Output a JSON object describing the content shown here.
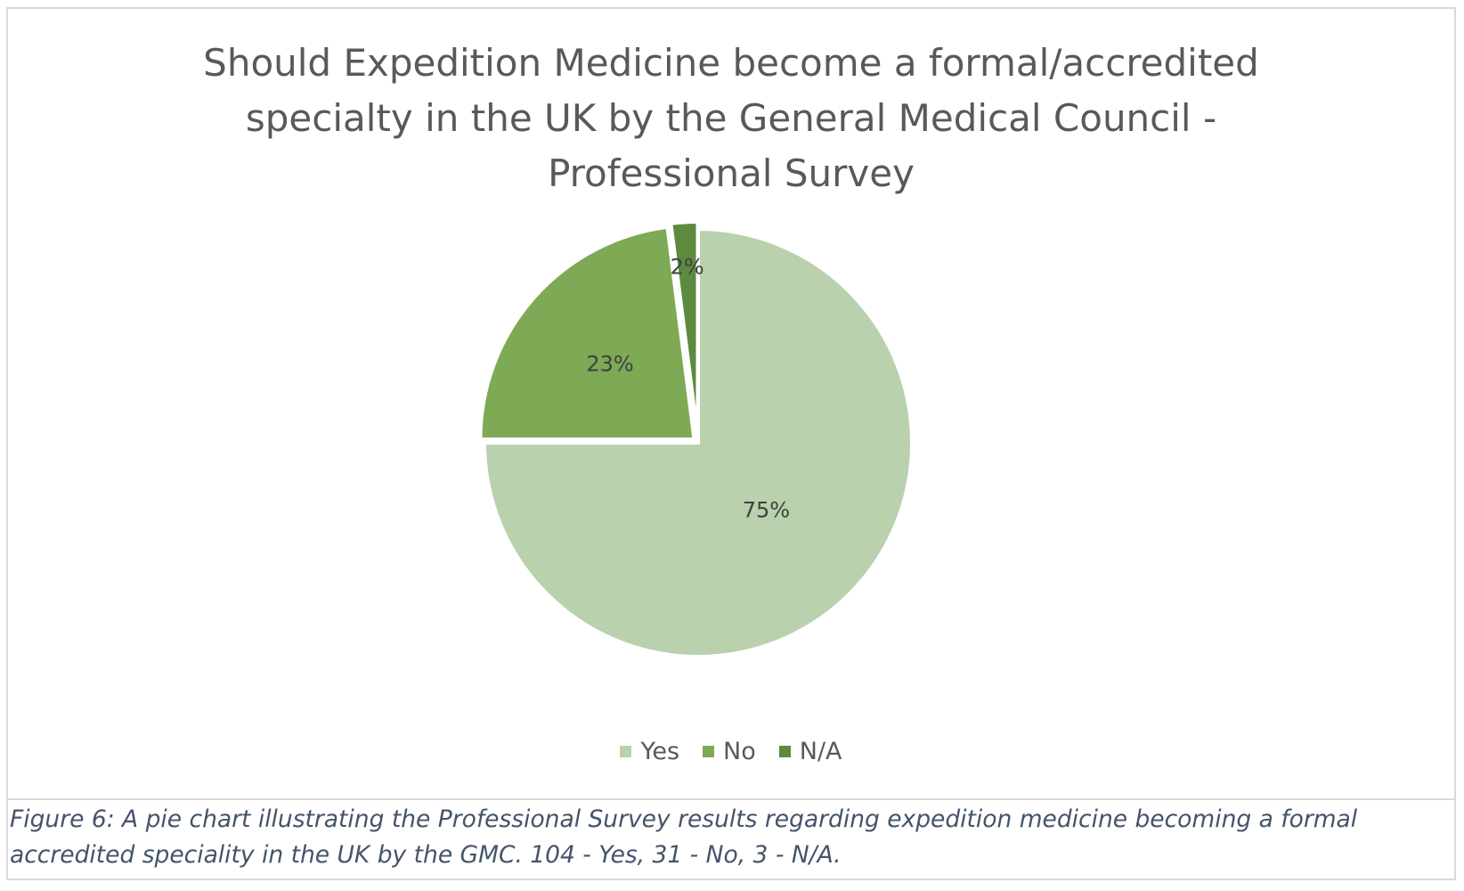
{
  "chart_data": {
    "type": "pie",
    "title": "Should Expedition Medicine become a formal/accredited\nspecialty in the UK by the General Medical Council -\nProfessional Survey",
    "categories": [
      "Yes",
      "No",
      "N/A"
    ],
    "values": [
      75,
      23,
      2
    ],
    "data_labels": [
      "75%",
      "23%",
      "2%"
    ],
    "colors": [
      "#b9d1ad",
      "#7ea955",
      "#5c8a3e"
    ],
    "legend_position": "bottom",
    "start": "12 o'clock, clockwise",
    "exploded": true
  },
  "caption": "Figure 6: A pie chart illustrating the Professional Survey results regarding expedition medicine becoming a formal accredited speciality in the UK by the GMC. 104 - Yes, 31 - No, 3 - N/A."
}
